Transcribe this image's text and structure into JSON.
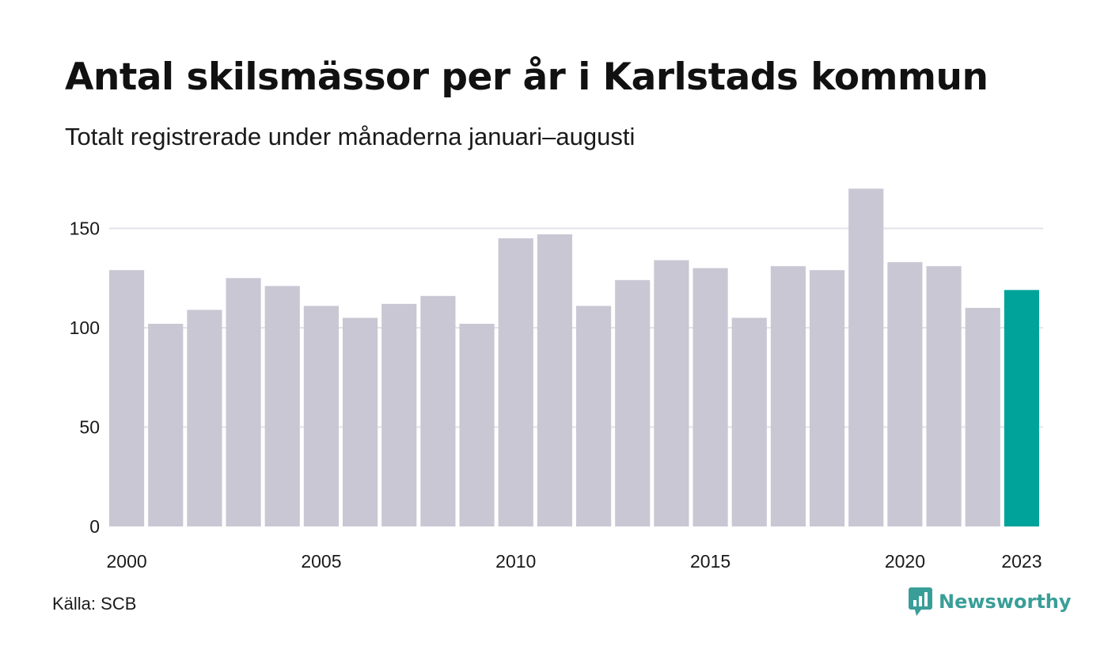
{
  "title": "Antal skilsmässor per år i Karlstads kommun",
  "subtitle": "Totalt registrerade under månaderna januari–augusti",
  "source": "Källa: SCB",
  "brand": {
    "name": "Newsworthy",
    "icon": "newsworthy-logo-icon",
    "color": "#3a9e98"
  },
  "chart_data": {
    "type": "bar",
    "categories": [
      "2000",
      "2001",
      "2002",
      "2003",
      "2004",
      "2005",
      "2006",
      "2007",
      "2008",
      "2009",
      "2010",
      "2011",
      "2012",
      "2013",
      "2014",
      "2015",
      "2016",
      "2017",
      "2018",
      "2019",
      "2020",
      "2021",
      "2022",
      "2023"
    ],
    "values": [
      129,
      102,
      109,
      125,
      121,
      111,
      105,
      112,
      116,
      102,
      145,
      147,
      111,
      124,
      134,
      130,
      105,
      131,
      129,
      170,
      133,
      131,
      110,
      119
    ],
    "x_tick_labels": [
      "2000",
      "2005",
      "2010",
      "2015",
      "2020",
      "2023"
    ],
    "y_ticks": [
      0,
      50,
      100,
      150
    ],
    "ylim": [
      0,
      170
    ],
    "grid": true,
    "colors": {
      "default": "#c8c7d3",
      "highlight": "#00a39a",
      "grid": "#e3e3e8"
    },
    "highlight_category": "2023"
  }
}
